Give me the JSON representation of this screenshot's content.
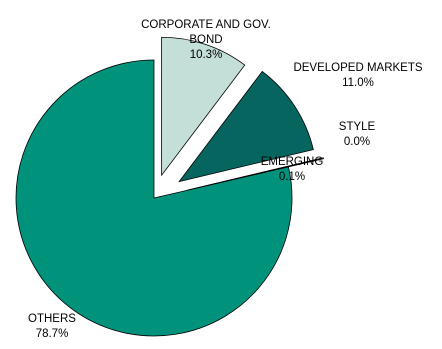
{
  "chart_data": {
    "type": "pie",
    "exploded": true,
    "slices": [
      {
        "label": "CORPORATE AND GOV. BOND",
        "label_lines": [
          "CORPORATE AND GOV.",
          "BOND"
        ],
        "value": 10.3,
        "value_text": "10.3%",
        "color": "#c4ded8"
      },
      {
        "label": "DEVELOPED MARKETS",
        "label_lines": [
          "DEVELOPED MARKETS"
        ],
        "value": 11.0,
        "value_text": "11.0%",
        "color": "#06665f"
      },
      {
        "label": "STYLE",
        "label_lines": [
          "STYLE"
        ],
        "value": 0.0,
        "value_text": "0.0%",
        "color": "#3f7a73"
      },
      {
        "label": "EMERGING",
        "label_lines": [
          "EMERGING"
        ],
        "value": 0.1,
        "value_text": "0.1%",
        "color": "#7aa59f"
      },
      {
        "label": "OTHERS",
        "label_lines": [
          "OTHERS"
        ],
        "value": 78.7,
        "value_text": "78.7%",
        "color": "#01927c"
      }
    ]
  }
}
